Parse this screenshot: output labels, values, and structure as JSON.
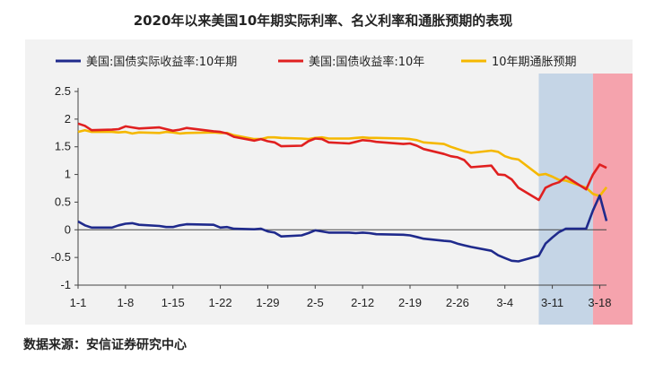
{
  "title": "2020年以来美国10年期实际利率、名义利率和通胀预期的表现",
  "source": "数据来源：安信证券研究中心",
  "colors": {
    "real": "#1f2a8c",
    "nominal": "#e02020",
    "inflation": "#f5b800",
    "band_blue": "#c5d5e6",
    "band_red": "#f5a3ad"
  },
  "chart_data": {
    "type": "line",
    "ylim": [
      -1,
      2.5
    ],
    "yticks": [
      "2.5",
      "2",
      "1.5",
      "1",
      "0.5",
      "0",
      "-0.5",
      "-1"
    ],
    "ytick_values": [
      2.5,
      2,
      1.5,
      1,
      0.5,
      0,
      -0.5,
      -1
    ],
    "xticks": [
      "1-1",
      "1-8",
      "1-15",
      "1-22",
      "1-29",
      "2-5",
      "2-12",
      "2-19",
      "2-26",
      "3-4",
      "3-11",
      "3-18"
    ],
    "x_start": "2020-01-01",
    "x_end": "2020-03-19",
    "highlight_bands": [
      {
        "from": "2020-03-09",
        "to": "2020-03-17",
        "color": "band_blue"
      },
      {
        "from": "2020-03-17",
        "to": "2020-03-19",
        "color": "band_red"
      }
    ],
    "legend_position": "top",
    "series": [
      {
        "name": "美国:国债实际收益率:10年期",
        "color_key": "real",
        "x": [
          "2020-01-01",
          "2020-01-02",
          "2020-01-03",
          "2020-01-06",
          "2020-01-07",
          "2020-01-08",
          "2020-01-09",
          "2020-01-10",
          "2020-01-13",
          "2020-01-14",
          "2020-01-15",
          "2020-01-16",
          "2020-01-17",
          "2020-01-21",
          "2020-01-22",
          "2020-01-23",
          "2020-01-24",
          "2020-01-27",
          "2020-01-28",
          "2020-01-29",
          "2020-01-30",
          "2020-01-31",
          "2020-02-03",
          "2020-02-04",
          "2020-02-05",
          "2020-02-06",
          "2020-02-07",
          "2020-02-10",
          "2020-02-11",
          "2020-02-12",
          "2020-02-13",
          "2020-02-14",
          "2020-02-18",
          "2020-02-19",
          "2020-02-20",
          "2020-02-21",
          "2020-02-24",
          "2020-02-25",
          "2020-02-26",
          "2020-02-27",
          "2020-02-28",
          "2020-03-02",
          "2020-03-03",
          "2020-03-04",
          "2020-03-05",
          "2020-03-06",
          "2020-03-09",
          "2020-03-10",
          "2020-03-11",
          "2020-03-12",
          "2020-03-13",
          "2020-03-16",
          "2020-03-17",
          "2020-03-18",
          "2020-03-19"
        ],
        "values": [
          0.15,
          0.08,
          0.04,
          0.04,
          0.08,
          0.11,
          0.12,
          0.09,
          0.07,
          0.05,
          0.05,
          0.08,
          0.1,
          0.09,
          0.04,
          0.05,
          0.02,
          0.01,
          0.02,
          -0.03,
          -0.05,
          -0.12,
          -0.1,
          -0.06,
          -0.01,
          -0.03,
          -0.05,
          -0.05,
          -0.06,
          -0.05,
          -0.06,
          -0.08,
          -0.09,
          -0.1,
          -0.13,
          -0.16,
          -0.2,
          -0.21,
          -0.25,
          -0.28,
          -0.31,
          -0.38,
          -0.46,
          -0.51,
          -0.56,
          -0.57,
          -0.47,
          -0.25,
          -0.14,
          -0.04,
          0.02,
          0.02,
          0.35,
          0.62,
          0.16
        ]
      },
      {
        "name": "美国:国债收益率:10年",
        "color_key": "nominal",
        "x": [
          "2020-01-01",
          "2020-01-02",
          "2020-01-03",
          "2020-01-06",
          "2020-01-07",
          "2020-01-08",
          "2020-01-09",
          "2020-01-10",
          "2020-01-13",
          "2020-01-14",
          "2020-01-15",
          "2020-01-16",
          "2020-01-17",
          "2020-01-21",
          "2020-01-22",
          "2020-01-23",
          "2020-01-24",
          "2020-01-27",
          "2020-01-28",
          "2020-01-29",
          "2020-01-30",
          "2020-01-31",
          "2020-02-03",
          "2020-02-04",
          "2020-02-05",
          "2020-02-06",
          "2020-02-07",
          "2020-02-10",
          "2020-02-11",
          "2020-02-12",
          "2020-02-13",
          "2020-02-14",
          "2020-02-18",
          "2020-02-19",
          "2020-02-20",
          "2020-02-21",
          "2020-02-24",
          "2020-02-25",
          "2020-02-26",
          "2020-02-27",
          "2020-02-28",
          "2020-03-02",
          "2020-03-03",
          "2020-03-04",
          "2020-03-05",
          "2020-03-06",
          "2020-03-09",
          "2020-03-10",
          "2020-03-11",
          "2020-03-12",
          "2020-03-13",
          "2020-03-16",
          "2020-03-17",
          "2020-03-18",
          "2020-03-19"
        ],
        "values": [
          1.92,
          1.88,
          1.8,
          1.81,
          1.82,
          1.87,
          1.85,
          1.83,
          1.85,
          1.82,
          1.79,
          1.81,
          1.84,
          1.78,
          1.77,
          1.74,
          1.68,
          1.61,
          1.64,
          1.6,
          1.58,
          1.51,
          1.52,
          1.6,
          1.65,
          1.64,
          1.58,
          1.56,
          1.59,
          1.62,
          1.61,
          1.59,
          1.55,
          1.56,
          1.52,
          1.46,
          1.37,
          1.33,
          1.31,
          1.26,
          1.13,
          1.16,
          1.0,
          0.99,
          0.91,
          0.76,
          0.54,
          0.76,
          0.82,
          0.86,
          0.96,
          0.73,
          1.0,
          1.18,
          1.12
        ]
      },
      {
        "name": "10年期通胀预期",
        "color_key": "inflation",
        "x": [
          "2020-01-01",
          "2020-01-02",
          "2020-01-03",
          "2020-01-06",
          "2020-01-07",
          "2020-01-08",
          "2020-01-09",
          "2020-01-10",
          "2020-01-13",
          "2020-01-14",
          "2020-01-15",
          "2020-01-16",
          "2020-01-17",
          "2020-01-21",
          "2020-01-22",
          "2020-01-23",
          "2020-01-24",
          "2020-01-27",
          "2020-01-28",
          "2020-01-29",
          "2020-01-30",
          "2020-01-31",
          "2020-02-03",
          "2020-02-04",
          "2020-02-05",
          "2020-02-06",
          "2020-02-07",
          "2020-02-10",
          "2020-02-11",
          "2020-02-12",
          "2020-02-13",
          "2020-02-14",
          "2020-02-18",
          "2020-02-19",
          "2020-02-20",
          "2020-02-21",
          "2020-02-24",
          "2020-02-25",
          "2020-02-26",
          "2020-02-27",
          "2020-02-28",
          "2020-03-02",
          "2020-03-03",
          "2020-03-04",
          "2020-03-05",
          "2020-03-06",
          "2020-03-09",
          "2020-03-10",
          "2020-03-11",
          "2020-03-12",
          "2020-03-13",
          "2020-03-16",
          "2020-03-17",
          "2020-03-18",
          "2020-03-19"
        ],
        "values": [
          1.77,
          1.8,
          1.77,
          1.77,
          1.76,
          1.77,
          1.74,
          1.76,
          1.75,
          1.77,
          1.76,
          1.74,
          1.75,
          1.76,
          1.75,
          1.75,
          1.71,
          1.64,
          1.64,
          1.67,
          1.67,
          1.66,
          1.65,
          1.64,
          1.66,
          1.67,
          1.65,
          1.65,
          1.66,
          1.67,
          1.66,
          1.66,
          1.65,
          1.64,
          1.62,
          1.58,
          1.55,
          1.5,
          1.46,
          1.42,
          1.39,
          1.43,
          1.41,
          1.33,
          1.29,
          1.27,
          0.99,
          1.01,
          0.96,
          0.9,
          0.89,
          0.76,
          0.65,
          0.61,
          0.77
        ]
      }
    ]
  }
}
